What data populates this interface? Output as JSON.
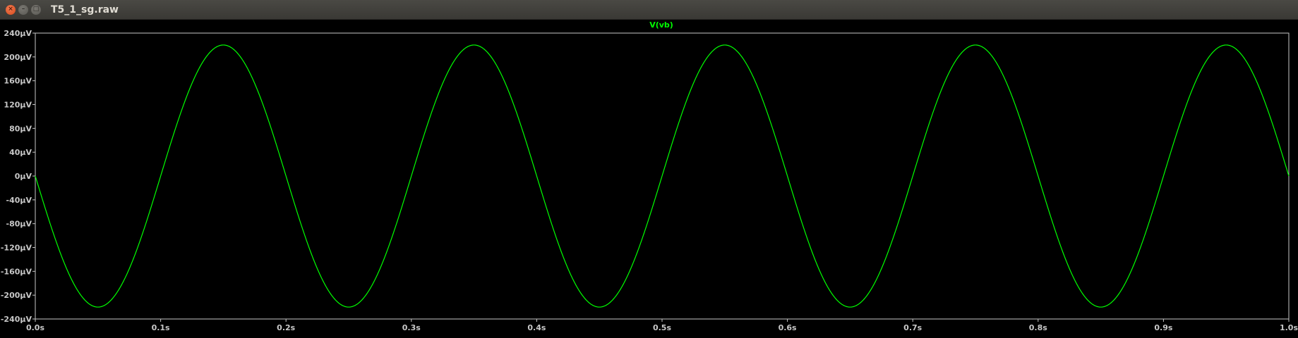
{
  "window": {
    "title": "T5_1_sg.raw",
    "close_glyph": "×",
    "minimize_glyph": "–",
    "maximize_glyph": "□"
  },
  "colors": {
    "trace": "#00ff00",
    "background": "#000000",
    "axis": "#c8c8c8",
    "tick_label": "#c8c8c8",
    "title": "#00ff00"
  },
  "chart_data": {
    "type": "line",
    "title": "V(vb)",
    "xlabel": "",
    "ylabel": "",
    "xlim": [
      0.0,
      1.0
    ],
    "ylim": [
      -240,
      240
    ],
    "x_unit": "s",
    "y_unit": "µV",
    "x_ticks": [
      0.0,
      0.1,
      0.2,
      0.3,
      0.4,
      0.5,
      0.6,
      0.7,
      0.8,
      0.9,
      1.0
    ],
    "x_tick_labels": [
      "0.0s",
      "0.1s",
      "0.2s",
      "0.3s",
      "0.4s",
      "0.5s",
      "0.6s",
      "0.7s",
      "0.8s",
      "0.9s",
      "1.0s"
    ],
    "y_ticks": [
      240,
      200,
      160,
      120,
      80,
      40,
      0,
      -40,
      -80,
      -120,
      -160,
      -200,
      -240
    ],
    "y_tick_labels": [
      "240µV",
      "200µV",
      "160µV",
      "120µV",
      "80µV",
      "40µV",
      "0µV",
      "-40µV",
      "-80µV",
      "-120µV",
      "-160µV",
      "-200µV",
      "-240µV"
    ],
    "grid": false,
    "series": [
      {
        "name": "V(vb)",
        "amplitude": 220,
        "frequency": 5,
        "phase_sign": -1,
        "x": [
          0.0,
          0.025,
          0.05,
          0.075,
          0.1,
          0.125,
          0.15,
          0.175,
          0.2,
          0.225,
          0.25,
          0.275,
          0.3,
          0.325,
          0.35,
          0.375,
          0.4,
          0.425,
          0.45,
          0.475,
          0.5,
          0.525,
          0.55,
          0.575,
          0.6,
          0.625,
          0.65,
          0.675,
          0.7,
          0.725,
          0.75,
          0.775,
          0.8,
          0.825,
          0.85,
          0.875,
          0.9,
          0.925,
          0.95,
          0.975,
          1.0
        ],
        "y": [
          0,
          -156,
          -220,
          -156,
          0,
          156,
          220,
          156,
          0,
          -156,
          -220,
          -156,
          0,
          156,
          220,
          156,
          0,
          -156,
          -220,
          -156,
          0,
          156,
          220,
          156,
          0,
          -156,
          -220,
          -156,
          0,
          156,
          220,
          156,
          0,
          -156,
          -220,
          -156,
          0,
          156,
          220,
          156,
          0
        ]
      }
    ]
  }
}
